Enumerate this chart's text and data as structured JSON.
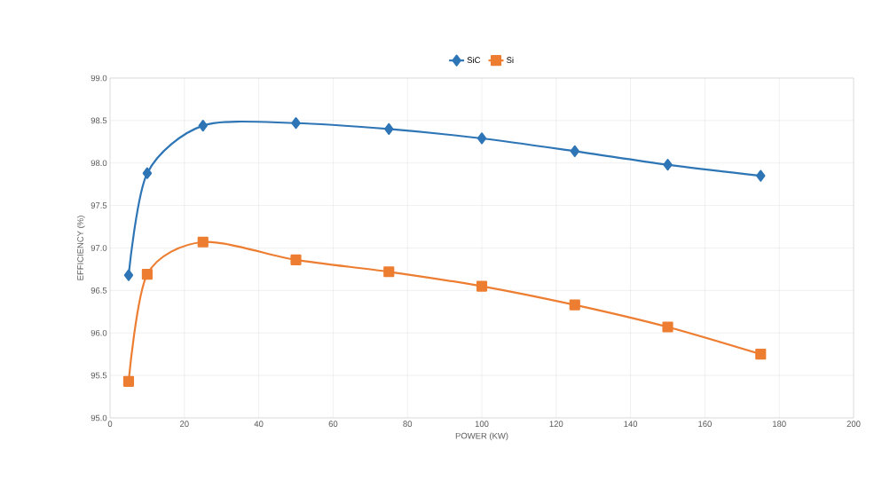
{
  "chart_data": {
    "type": "line",
    "xlabel": "POWER (KW)",
    "ylabel": "EFFICIENCY (%)",
    "x": [
      5,
      10,
      25,
      50,
      75,
      100,
      125,
      150,
      175
    ],
    "series": [
      {
        "name": "SiC",
        "color": "#2e75b6",
        "marker": "diamond",
        "values": [
          96.68,
          97.88,
          98.44,
          98.47,
          98.4,
          98.29,
          98.14,
          97.98,
          97.85
        ]
      },
      {
        "name": "Si",
        "color": "#ed7d31",
        "marker": "square",
        "values": [
          95.43,
          96.69,
          97.07,
          96.86,
          96.72,
          96.55,
          96.33,
          96.07,
          95.75
        ]
      }
    ],
    "xlim": [
      0,
      200
    ],
    "xticks": [
      0,
      20,
      40,
      60,
      80,
      100,
      120,
      140,
      160,
      180,
      200
    ],
    "ylim": [
      95,
      99
    ],
    "yticks": [
      {
        "value": 95,
        "label": "95.0"
      },
      {
        "value": 95.5,
        "label": "95.5"
      },
      {
        "value": 96,
        "label": "96.0"
      },
      {
        "value": 96.5,
        "label": "96.5"
      },
      {
        "value": 97,
        "label": "97.0"
      },
      {
        "value": 97.5,
        "label": "97.5"
      },
      {
        "value": 98,
        "label": "98.0"
      },
      {
        "value": 98.5,
        "label": "98.5"
      },
      {
        "value": 99,
        "label": "99.0"
      }
    ],
    "grid": true,
    "legend": "top",
    "line_style": "solid"
  }
}
